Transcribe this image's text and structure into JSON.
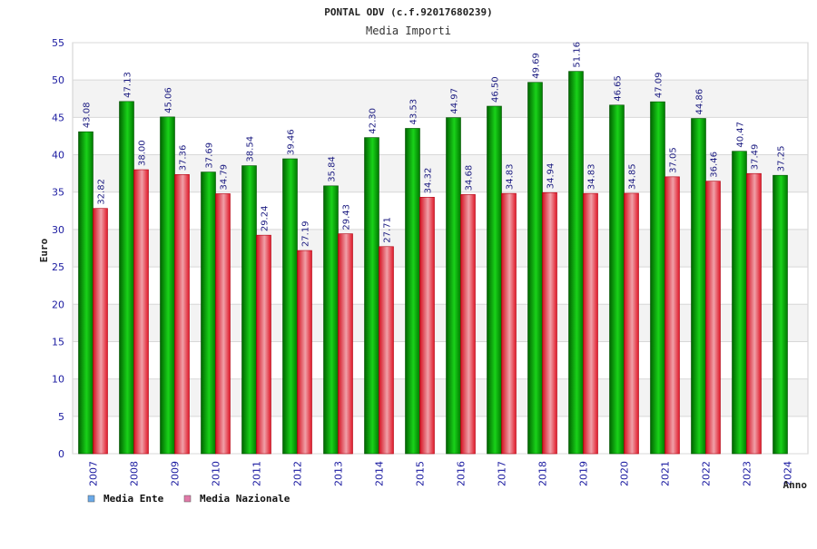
{
  "chart_data": {
    "type": "bar",
    "title": "PONTAL ODV (c.f.92017680239)",
    "subtitle": "Media Importi",
    "xlabel": "Anno",
    "ylabel": "Euro",
    "ylim": [
      0,
      55
    ],
    "ytick_step": 5,
    "grid": true,
    "legend_position": "bottom-left",
    "categories": [
      "2007",
      "2008",
      "2009",
      "2010",
      "2011",
      "2012",
      "2013",
      "2014",
      "2015",
      "2016",
      "2017",
      "2018",
      "2019",
      "2020",
      "2021",
      "2022",
      "2023",
      "2024"
    ],
    "series": [
      {
        "name": "Media Ente",
        "color": "#00b000",
        "legend_color": "#6aa9e8",
        "values": [
          43.08,
          47.13,
          45.06,
          37.69,
          38.54,
          39.46,
          35.84,
          42.3,
          43.53,
          44.97,
          46.5,
          49.69,
          51.16,
          46.65,
          47.09,
          44.86,
          40.47,
          37.25
        ],
        "labels": [
          "43.08",
          "47.13",
          "45.06",
          "37.69",
          "38.54",
          "39.46",
          "35.84",
          "42.30",
          "43.53",
          "44.97",
          "46.50",
          "49.69",
          "51.16",
          "46.65",
          "47.09",
          "44.86",
          "40.47",
          "37.25"
        ]
      },
      {
        "name": "Media Nazionale",
        "color": "#e8202e",
        "legend_color": "#e07aa8",
        "values": [
          32.82,
          38.0,
          37.36,
          34.79,
          29.24,
          27.19,
          29.43,
          27.71,
          34.32,
          34.68,
          34.83,
          34.94,
          34.83,
          34.85,
          37.05,
          36.46,
          37.49,
          null
        ],
        "labels": [
          "32.82",
          "38.00",
          "37.36",
          "34.79",
          "29.24",
          "27.19",
          "29.43",
          "27.71",
          "34.32",
          "34.68",
          "34.83",
          "34.94",
          "34.83",
          "34.85",
          "37.05",
          "36.46",
          "37.49",
          ""
        ]
      }
    ]
  }
}
